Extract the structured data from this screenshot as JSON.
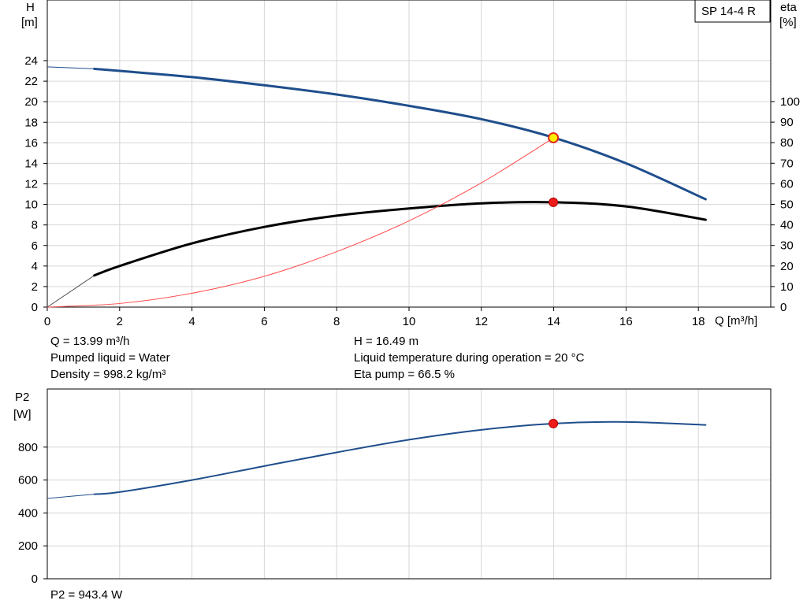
{
  "chart_data": [
    {
      "type": "line",
      "title": "SP 14-4 R",
      "x_axis": {
        "label": "Q [m³/h]",
        "range": [
          0,
          20
        ],
        "ticks": [
          0,
          2,
          4,
          6,
          8,
          10,
          12,
          14,
          16,
          18
        ]
      },
      "y_left": {
        "label_top": "H",
        "label_unit": "[m]",
        "range": [
          0,
          24
        ],
        "ticks": [
          0,
          2,
          4,
          6,
          8,
          10,
          12,
          14,
          16,
          18,
          20,
          22,
          24
        ]
      },
      "y_right": {
        "label_top": "eta",
        "label_unit": "[%]",
        "range": [
          0,
          100
        ],
        "ticks": [
          0,
          10,
          20,
          30,
          40,
          50,
          60,
          70,
          80,
          90,
          100
        ]
      },
      "grid": true,
      "series": [
        {
          "axis": "left",
          "color": "#1f4e8c",
          "x": [
            0,
            1.3,
            2,
            4,
            6,
            8,
            10,
            12,
            14,
            16,
            18.2
          ],
          "y": [
            23.4,
            23.2,
            23.0,
            22.4,
            21.6,
            20.7,
            19.6,
            18.3,
            16.5,
            14.0,
            10.5
          ]
        },
        {
          "axis": "right",
          "color": "#000000",
          "x": [
            0,
            1.3,
            2,
            4,
            6,
            8,
            10,
            12,
            14,
            16,
            18.2
          ],
          "y": [
            0,
            15.4,
            20,
            31,
            39,
            44.5,
            48,
            50.5,
            51,
            49,
            42.5
          ]
        },
        {
          "axis": "left",
          "color": "#ff4a4a",
          "x": [
            0,
            2,
            4,
            6,
            8,
            10,
            12,
            14
          ],
          "y": [
            0,
            0.35,
            1.35,
            3.0,
            5.4,
            8.4,
            12.1,
            16.49
          ]
        }
      ],
      "operating_point": {
        "x": 13.99,
        "H": 16.49,
        "eta": 51
      },
      "info": {
        "q": "Q = 13.99 m³/h",
        "liquid": "Pumped liquid = Water",
        "density": "Density = 998.2 kg/m³",
        "h": "H = 16.49 m",
        "temp": "Liquid temperature during operation = 20 °C",
        "eta": "Eta pump = 66.5 %"
      }
    },
    {
      "type": "line",
      "x_axis": {
        "range": [
          0,
          20
        ],
        "ticks": [
          0,
          2,
          4,
          6,
          8,
          10,
          12,
          14,
          16,
          18
        ]
      },
      "y_left": {
        "label_top": "P2",
        "label_unit": "[W]",
        "range": [
          0,
          1000
        ],
        "ticks": [
          0,
          200,
          400,
          600,
          800
        ]
      },
      "grid": true,
      "series": [
        {
          "axis": "left",
          "color": "#1f4e8c",
          "x": [
            0,
            1.3,
            2,
            4,
            6,
            8,
            10,
            12,
            14,
            16,
            18.2
          ],
          "y": [
            488,
            514,
            527,
            600,
            685,
            768,
            845,
            905,
            943.4,
            953,
            935
          ]
        }
      ],
      "operating_point": {
        "x": 13.99,
        "P2": 943.4
      },
      "info": {
        "p2": "P2 = 943.4 W"
      }
    }
  ]
}
